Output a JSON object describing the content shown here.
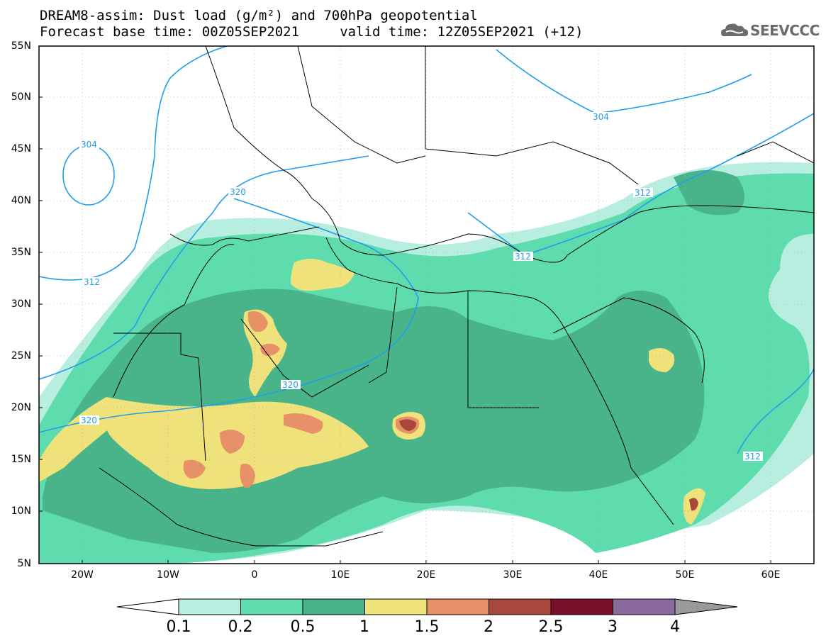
{
  "title": {
    "line1": "DREAM8-assim: Dust load (g/m²) and 700hPa geopotential",
    "line2": "Forecast base time: 00Z05SEP2021     valid time: 12Z05SEP2021 (+12)"
  },
  "logo": {
    "text": "SEEVCCC",
    "icon": "cloud-icon"
  },
  "map": {
    "lat_labels": [
      "55N",
      "50N",
      "45N",
      "40N",
      "35N",
      "30N",
      "25N",
      "20N",
      "15N",
      "10N",
      "5N"
    ],
    "lon_labels": [
      "20W",
      "10W",
      "0",
      "10E",
      "20E",
      "30E",
      "40E",
      "50E",
      "60E"
    ],
    "contour_labels": [
      "304",
      "304",
      "320",
      "312",
      "320",
      "320",
      "312",
      "312",
      "312"
    ],
    "colors": {
      "c0": "#b8eee0",
      "c1": "#5fdcad",
      "c2": "#49b48a",
      "c3": "#f0e27a",
      "c4": "#e69168",
      "c5": "#a8473b",
      "c6": "#7a0f2c",
      "c7": "#8a6a9e",
      "c8": "#9a9a9a",
      "contour": "#1f9fea"
    }
  },
  "colorbar": {
    "labels": [
      "0.1",
      "0.2",
      "0.5",
      "1",
      "1.5",
      "2",
      "2.5",
      "3",
      "4"
    ],
    "colors": [
      "#b8eee0",
      "#5fdcad",
      "#49b48a",
      "#f0e27a",
      "#e69168",
      "#a8473b",
      "#7a0f2c",
      "#8a6a9e"
    ]
  }
}
